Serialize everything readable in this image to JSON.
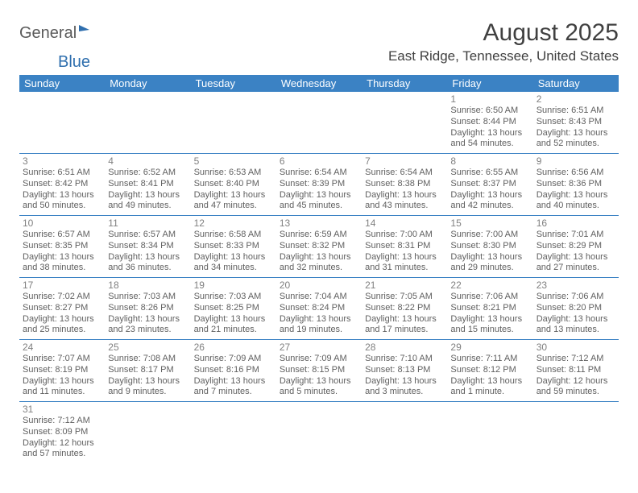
{
  "logo": {
    "part1": "General",
    "part2": "Blue"
  },
  "title": "August 2025",
  "location": "East Ridge, Tennessee, United States",
  "colors": {
    "header_bg": "#3b82c4",
    "header_text": "#ffffff",
    "border": "#3b82c4",
    "text": "#606060",
    "daynum": "#808080",
    "logo_blue": "#2f6fae"
  },
  "weekdays": [
    "Sunday",
    "Monday",
    "Tuesday",
    "Wednesday",
    "Thursday",
    "Friday",
    "Saturday"
  ],
  "weeks": [
    [
      null,
      null,
      null,
      null,
      null,
      {
        "n": "1",
        "sr": "6:50 AM",
        "ss": "8:44 PM",
        "dl": "13 hours and 54 minutes."
      },
      {
        "n": "2",
        "sr": "6:51 AM",
        "ss": "8:43 PM",
        "dl": "13 hours and 52 minutes."
      }
    ],
    [
      {
        "n": "3",
        "sr": "6:51 AM",
        "ss": "8:42 PM",
        "dl": "13 hours and 50 minutes."
      },
      {
        "n": "4",
        "sr": "6:52 AM",
        "ss": "8:41 PM",
        "dl": "13 hours and 49 minutes."
      },
      {
        "n": "5",
        "sr": "6:53 AM",
        "ss": "8:40 PM",
        "dl": "13 hours and 47 minutes."
      },
      {
        "n": "6",
        "sr": "6:54 AM",
        "ss": "8:39 PM",
        "dl": "13 hours and 45 minutes."
      },
      {
        "n": "7",
        "sr": "6:54 AM",
        "ss": "8:38 PM",
        "dl": "13 hours and 43 minutes."
      },
      {
        "n": "8",
        "sr": "6:55 AM",
        "ss": "8:37 PM",
        "dl": "13 hours and 42 minutes."
      },
      {
        "n": "9",
        "sr": "6:56 AM",
        "ss": "8:36 PM",
        "dl": "13 hours and 40 minutes."
      }
    ],
    [
      {
        "n": "10",
        "sr": "6:57 AM",
        "ss": "8:35 PM",
        "dl": "13 hours and 38 minutes."
      },
      {
        "n": "11",
        "sr": "6:57 AM",
        "ss": "8:34 PM",
        "dl": "13 hours and 36 minutes."
      },
      {
        "n": "12",
        "sr": "6:58 AM",
        "ss": "8:33 PM",
        "dl": "13 hours and 34 minutes."
      },
      {
        "n": "13",
        "sr": "6:59 AM",
        "ss": "8:32 PM",
        "dl": "13 hours and 32 minutes."
      },
      {
        "n": "14",
        "sr": "7:00 AM",
        "ss": "8:31 PM",
        "dl": "13 hours and 31 minutes."
      },
      {
        "n": "15",
        "sr": "7:00 AM",
        "ss": "8:30 PM",
        "dl": "13 hours and 29 minutes."
      },
      {
        "n": "16",
        "sr": "7:01 AM",
        "ss": "8:29 PM",
        "dl": "13 hours and 27 minutes."
      }
    ],
    [
      {
        "n": "17",
        "sr": "7:02 AM",
        "ss": "8:27 PM",
        "dl": "13 hours and 25 minutes."
      },
      {
        "n": "18",
        "sr": "7:03 AM",
        "ss": "8:26 PM",
        "dl": "13 hours and 23 minutes."
      },
      {
        "n": "19",
        "sr": "7:03 AM",
        "ss": "8:25 PM",
        "dl": "13 hours and 21 minutes."
      },
      {
        "n": "20",
        "sr": "7:04 AM",
        "ss": "8:24 PM",
        "dl": "13 hours and 19 minutes."
      },
      {
        "n": "21",
        "sr": "7:05 AM",
        "ss": "8:22 PM",
        "dl": "13 hours and 17 minutes."
      },
      {
        "n": "22",
        "sr": "7:06 AM",
        "ss": "8:21 PM",
        "dl": "13 hours and 15 minutes."
      },
      {
        "n": "23",
        "sr": "7:06 AM",
        "ss": "8:20 PM",
        "dl": "13 hours and 13 minutes."
      }
    ],
    [
      {
        "n": "24",
        "sr": "7:07 AM",
        "ss": "8:19 PM",
        "dl": "13 hours and 11 minutes."
      },
      {
        "n": "25",
        "sr": "7:08 AM",
        "ss": "8:17 PM",
        "dl": "13 hours and 9 minutes."
      },
      {
        "n": "26",
        "sr": "7:09 AM",
        "ss": "8:16 PM",
        "dl": "13 hours and 7 minutes."
      },
      {
        "n": "27",
        "sr": "7:09 AM",
        "ss": "8:15 PM",
        "dl": "13 hours and 5 minutes."
      },
      {
        "n": "28",
        "sr": "7:10 AM",
        "ss": "8:13 PM",
        "dl": "13 hours and 3 minutes."
      },
      {
        "n": "29",
        "sr": "7:11 AM",
        "ss": "8:12 PM",
        "dl": "13 hours and 1 minute."
      },
      {
        "n": "30",
        "sr": "7:12 AM",
        "ss": "8:11 PM",
        "dl": "12 hours and 59 minutes."
      }
    ],
    [
      {
        "n": "31",
        "sr": "7:12 AM",
        "ss": "8:09 PM",
        "dl": "12 hours and 57 minutes."
      },
      null,
      null,
      null,
      null,
      null,
      null
    ]
  ],
  "labels": {
    "sunrise": "Sunrise:",
    "sunset": "Sunset:",
    "daylight": "Daylight:"
  }
}
